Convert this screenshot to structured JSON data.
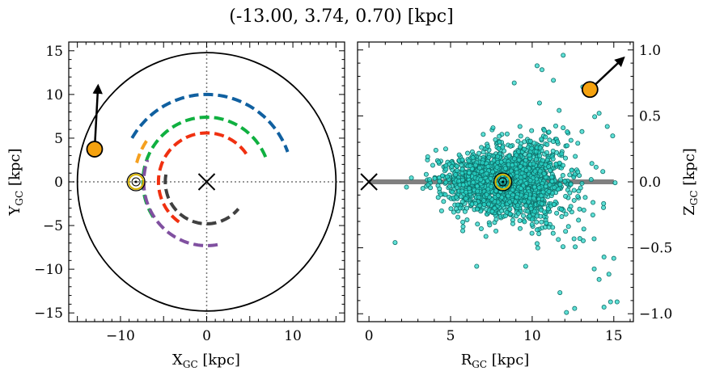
{
  "title": "(-13.00, 3.74, 0.70) [kpc]",
  "colors": {
    "star_marker": "#f5a20f",
    "scatter_fill": "#29d6c8",
    "scatter_edge": "#0f6f69",
    "sun_marker": "#d6b200",
    "band": "#808080",
    "arm_blue": "#1060a0",
    "arm_green": "#10b040",
    "arm_orange": "#f5a020",
    "arm_red": "#f03010",
    "arm_purple": "#8050a0",
    "arm_gray": "#404040"
  },
  "chart_data": [
    {
      "type": "scatter",
      "panel": "left",
      "xlabel": "X",
      "xlabel_sub": "GC",
      "xlabel_unit": " [kpc]",
      "ylabel": "Y",
      "ylabel_sub": "GC",
      "ylabel_unit": " [kpc]",
      "xlim": [
        -16,
        16
      ],
      "ylim": [
        -16,
        16
      ],
      "xticks": [
        -10,
        0,
        10
      ],
      "xtick_labels": [
        "−10",
        "0",
        "10"
      ],
      "yticks": [
        -15,
        -10,
        -5,
        0,
        5,
        10,
        15
      ],
      "ytick_labels": [
        "−15",
        "−10",
        "−5",
        "0",
        "5",
        "10",
        "15"
      ],
      "disk_radius": 15,
      "galactic_center": [
        0,
        0
      ],
      "sun": [
        -8.2,
        0
      ],
      "star": [
        -13.0,
        3.74
      ],
      "velocity_arrow_end": [
        -12.6,
        11.0
      ],
      "arms": [
        {
          "color": "#1060a0",
          "radius": 10.0,
          "theta_start": 150,
          "theta_end": 20
        },
        {
          "color": "#10b040",
          "radius": 7.4,
          "theta_start": 213,
          "theta_end": 20
        },
        {
          "color": "#f5a020",
          "radius": 8.4,
          "theta_start": 165,
          "theta_end": 146
        },
        {
          "color": "#f03010",
          "radius": 5.6,
          "theta_start": 235,
          "theta_end": 35
        },
        {
          "color": "#8050a0",
          "radius": 7.3,
          "theta_start": 280,
          "theta_end": 160
        },
        {
          "color": "#404040",
          "radius": 4.8,
          "theta_start": 170,
          "theta_end": 320
        }
      ]
    },
    {
      "type": "scatter",
      "panel": "right",
      "xlabel": "R",
      "xlabel_sub": "GC",
      "xlabel_unit": " [kpc]",
      "ylabel": "Z",
      "ylabel_sub": "GC",
      "ylabel_unit": " [kpc]",
      "xlim": [
        -0.7,
        16.2
      ],
      "ylim": [
        -1.06,
        1.06
      ],
      "xticks": [
        0,
        5,
        10,
        15
      ],
      "xtick_labels": [
        "0",
        "5",
        "10",
        "15"
      ],
      "yticks": [
        -1.0,
        -0.5,
        0.0,
        0.5,
        1.0
      ],
      "ytick_labels": [
        "−1.0",
        "−0.5",
        "0.0",
        "0.5",
        "1.0"
      ],
      "y_axis_side": "right",
      "galactic_center": [
        0,
        0
      ],
      "sun": [
        8.2,
        0
      ],
      "star": [
        13.54,
        0.7
      ],
      "velocity_arrow_end": [
        15.6,
        0.94
      ],
      "disk_band": {
        "x_start": 0,
        "x_end": 15,
        "z": 0
      },
      "sample_outliers": [
        [
          1.6,
          -0.46
        ],
        [
          6.6,
          -0.64
        ],
        [
          9.6,
          -0.64
        ],
        [
          11.7,
          -0.84
        ],
        [
          12.1,
          -0.99
        ],
        [
          12.6,
          -0.96
        ],
        [
          14.4,
          -0.95
        ],
        [
          14.8,
          -0.91
        ],
        [
          15.2,
          -0.91
        ],
        [
          14.1,
          -0.74
        ],
        [
          14.7,
          -0.7
        ],
        [
          14.4,
          -0.57
        ],
        [
          15.0,
          -0.58
        ],
        [
          13.8,
          -0.66
        ],
        [
          11.9,
          0.96
        ],
        [
          10.3,
          0.88
        ],
        [
          13.1,
          0.72
        ],
        [
          7.6,
          0.41
        ],
        [
          7.0,
          0.36
        ],
        [
          4.7,
          0.25
        ],
        [
          4.1,
          0.24
        ],
        [
          3.6,
          0.19
        ],
        [
          2.3,
          -0.04
        ],
        [
          2.6,
          0.03
        ],
        [
          3.3,
          -0.05
        ],
        [
          10.6,
          0.85
        ],
        [
          11.3,
          0.77
        ],
        [
          8.9,
          0.75
        ],
        [
          14.6,
          0.42
        ],
        [
          14.1,
          0.52
        ]
      ],
      "sample_n": 2200,
      "sample_center_r": 8.4,
      "sample_r_spread": 1.9,
      "sample_z_spread": 0.11
    }
  ]
}
